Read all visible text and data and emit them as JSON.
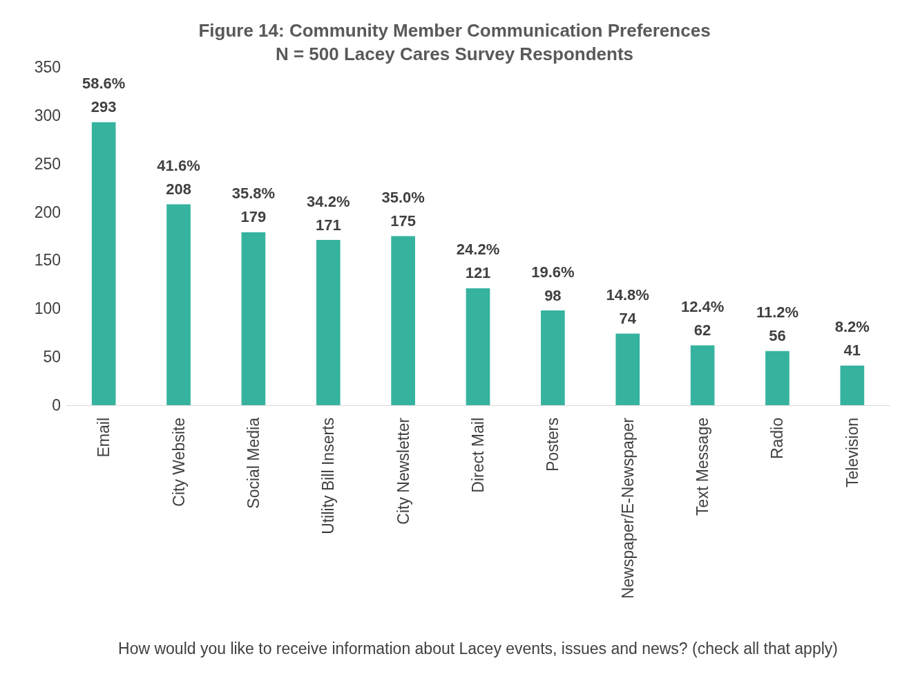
{
  "chart_data": {
    "type": "bar",
    "title": "Figure 14: Community Member Communication Preferences",
    "subtitle": "N = 500 Lacey Cares Survey Respondents",
    "xlabel": "How would you like to receive information about Lacey events, issues and news? (check all that apply)",
    "categories": [
      "Email",
      "City Website",
      "Social Media",
      "Utility Bill Inserts",
      "City Newsletter",
      "Direct Mail",
      "Posters",
      "Newspaper/E-Newspaper",
      "Text Message",
      "Radio",
      "Television"
    ],
    "values": [
      293,
      208,
      179,
      171,
      175,
      121,
      98,
      74,
      62,
      56,
      41
    ],
    "value_labels": [
      "58.6%\n293",
      "41.6%\n208",
      "35.8%\n179",
      "34.2%\n171",
      "35.0%\n175",
      "24.2%\n121",
      "19.6%\n98",
      "14.8%\n74",
      "12.4%\n62",
      "11.2%\n56",
      "8.2%\n41"
    ],
    "color": "#36b39f",
    "ylim": [
      0,
      350
    ],
    "yticks": [
      0,
      50,
      100,
      150,
      200,
      250,
      300,
      350
    ],
    "grid": false
  }
}
